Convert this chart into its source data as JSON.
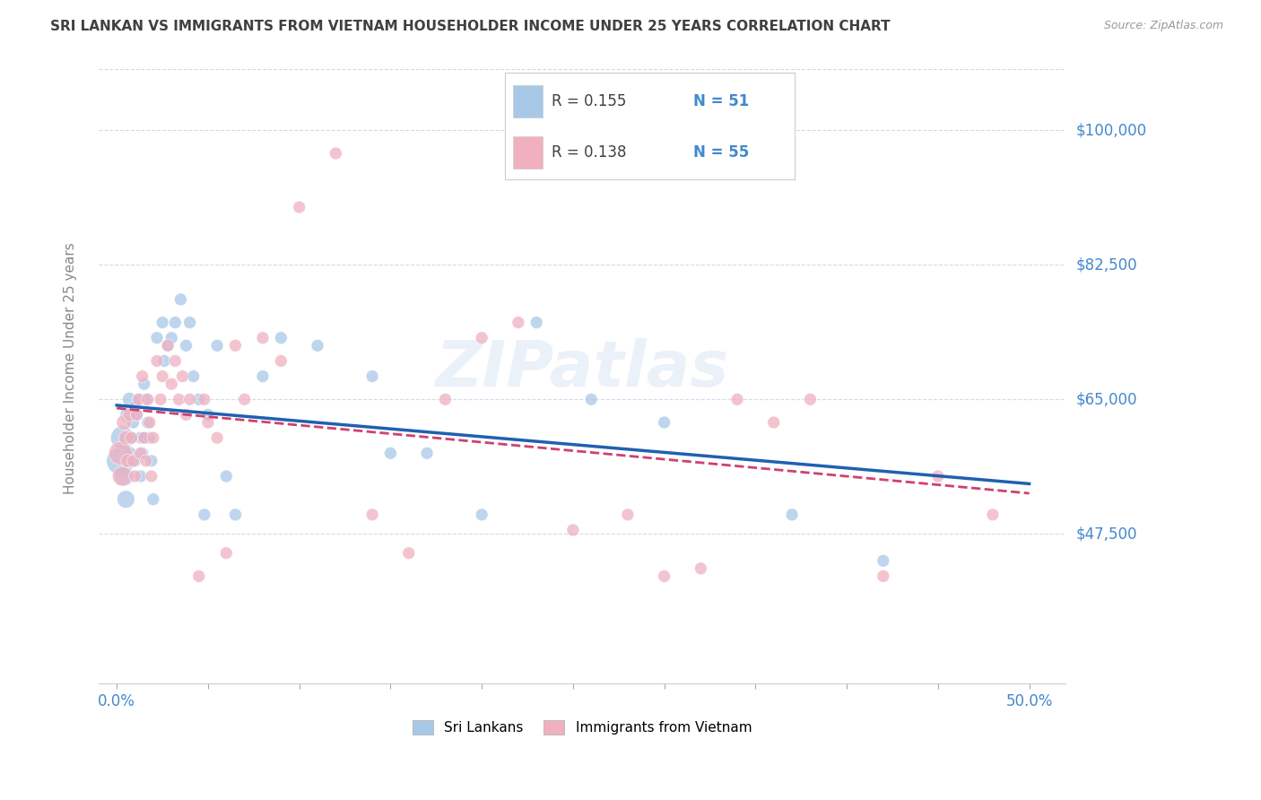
{
  "title": "SRI LANKAN VS IMMIGRANTS FROM VIETNAM HOUSEHOLDER INCOME UNDER 25 YEARS CORRELATION CHART",
  "source": "Source: ZipAtlas.com",
  "ylabel": "Householder Income Under 25 years",
  "r_blue": 0.155,
  "n_blue": 51,
  "r_pink": 0.138,
  "n_pink": 55,
  "blue_color": "#a8c8e8",
  "pink_color": "#f0b0c0",
  "trend_blue_color": "#2060b0",
  "trend_pink_color": "#d04070",
  "y_ticks": [
    47500,
    65000,
    82500,
    100000
  ],
  "y_tick_labels": [
    "$47,500",
    "$65,000",
    "$82,500",
    "$100,000"
  ],
  "x_ticks": [
    0.0,
    0.05,
    0.1,
    0.15,
    0.2,
    0.25,
    0.3,
    0.35,
    0.4,
    0.45,
    0.5
  ],
  "x_tick_labels_show": {
    "0.0": "0.0%",
    "0.5": "50.0%"
  },
  "xlim": [
    -0.01,
    0.52
  ],
  "ylim": [
    28000,
    110000
  ],
  "blue_x": [
    0.002,
    0.003,
    0.004,
    0.005,
    0.006,
    0.007,
    0.007,
    0.008,
    0.009,
    0.01,
    0.01,
    0.011,
    0.012,
    0.013,
    0.013,
    0.014,
    0.015,
    0.015,
    0.016,
    0.017,
    0.018,
    0.019,
    0.02,
    0.022,
    0.025,
    0.026,
    0.028,
    0.03,
    0.032,
    0.035,
    0.038,
    0.04,
    0.042,
    0.045,
    0.048,
    0.05,
    0.055,
    0.06,
    0.065,
    0.08,
    0.09,
    0.11,
    0.14,
    0.15,
    0.17,
    0.2,
    0.23,
    0.26,
    0.3,
    0.37,
    0.42
  ],
  "blue_y": [
    57000,
    60000,
    55000,
    52000,
    63000,
    65000,
    58000,
    60000,
    62000,
    64000,
    57000,
    63000,
    65000,
    60000,
    55000,
    58000,
    67000,
    60000,
    65000,
    62000,
    60000,
    57000,
    52000,
    73000,
    75000,
    70000,
    72000,
    73000,
    75000,
    78000,
    72000,
    75000,
    68000,
    65000,
    50000,
    63000,
    72000,
    55000,
    50000,
    68000,
    73000,
    72000,
    68000,
    58000,
    58000,
    50000,
    75000,
    65000,
    62000,
    50000,
    44000
  ],
  "blue_sizes": [
    500,
    350,
    250,
    200,
    150,
    130,
    120,
    110,
    100,
    100,
    100,
    100,
    100,
    100,
    100,
    100,
    100,
    100,
    100,
    100,
    100,
    100,
    100,
    100,
    100,
    100,
    100,
    100,
    100,
    100,
    100,
    100,
    100,
    100,
    100,
    100,
    100,
    100,
    100,
    100,
    100,
    100,
    100,
    100,
    100,
    100,
    100,
    100,
    100,
    100,
    100
  ],
  "pink_x": [
    0.002,
    0.003,
    0.004,
    0.005,
    0.006,
    0.007,
    0.008,
    0.009,
    0.01,
    0.011,
    0.012,
    0.013,
    0.014,
    0.015,
    0.016,
    0.017,
    0.018,
    0.019,
    0.02,
    0.022,
    0.024,
    0.025,
    0.028,
    0.03,
    0.032,
    0.034,
    0.036,
    0.038,
    0.04,
    0.045,
    0.048,
    0.05,
    0.055,
    0.06,
    0.065,
    0.07,
    0.08,
    0.09,
    0.1,
    0.12,
    0.14,
    0.16,
    0.18,
    0.2,
    0.22,
    0.25,
    0.28,
    0.3,
    0.32,
    0.34,
    0.36,
    0.38,
    0.42,
    0.45,
    0.48
  ],
  "pink_y": [
    58000,
    55000,
    62000,
    60000,
    57000,
    63000,
    60000,
    57000,
    55000,
    63000,
    65000,
    58000,
    68000,
    60000,
    57000,
    65000,
    62000,
    55000,
    60000,
    70000,
    65000,
    68000,
    72000,
    67000,
    70000,
    65000,
    68000,
    63000,
    65000,
    42000,
    65000,
    62000,
    60000,
    45000,
    72000,
    65000,
    73000,
    70000,
    90000,
    97000,
    50000,
    45000,
    65000,
    73000,
    75000,
    48000,
    50000,
    42000,
    43000,
    65000,
    62000,
    65000,
    42000,
    55000,
    50000
  ],
  "pink_sizes": [
    350,
    250,
    150,
    130,
    120,
    110,
    100,
    100,
    100,
    100,
    100,
    100,
    100,
    100,
    100,
    100,
    100,
    100,
    100,
    100,
    100,
    100,
    100,
    100,
    100,
    100,
    100,
    100,
    100,
    100,
    100,
    100,
    100,
    100,
    100,
    100,
    100,
    100,
    100,
    100,
    100,
    100,
    100,
    100,
    100,
    100,
    100,
    100,
    100,
    100,
    100,
    100,
    100,
    100,
    100
  ],
  "watermark": "ZIPatlas",
  "background_color": "#ffffff",
  "grid_color": "#d8d8e8",
  "label_color": "#4488cc",
  "title_color": "#404040",
  "axis_label_color": "#888888"
}
